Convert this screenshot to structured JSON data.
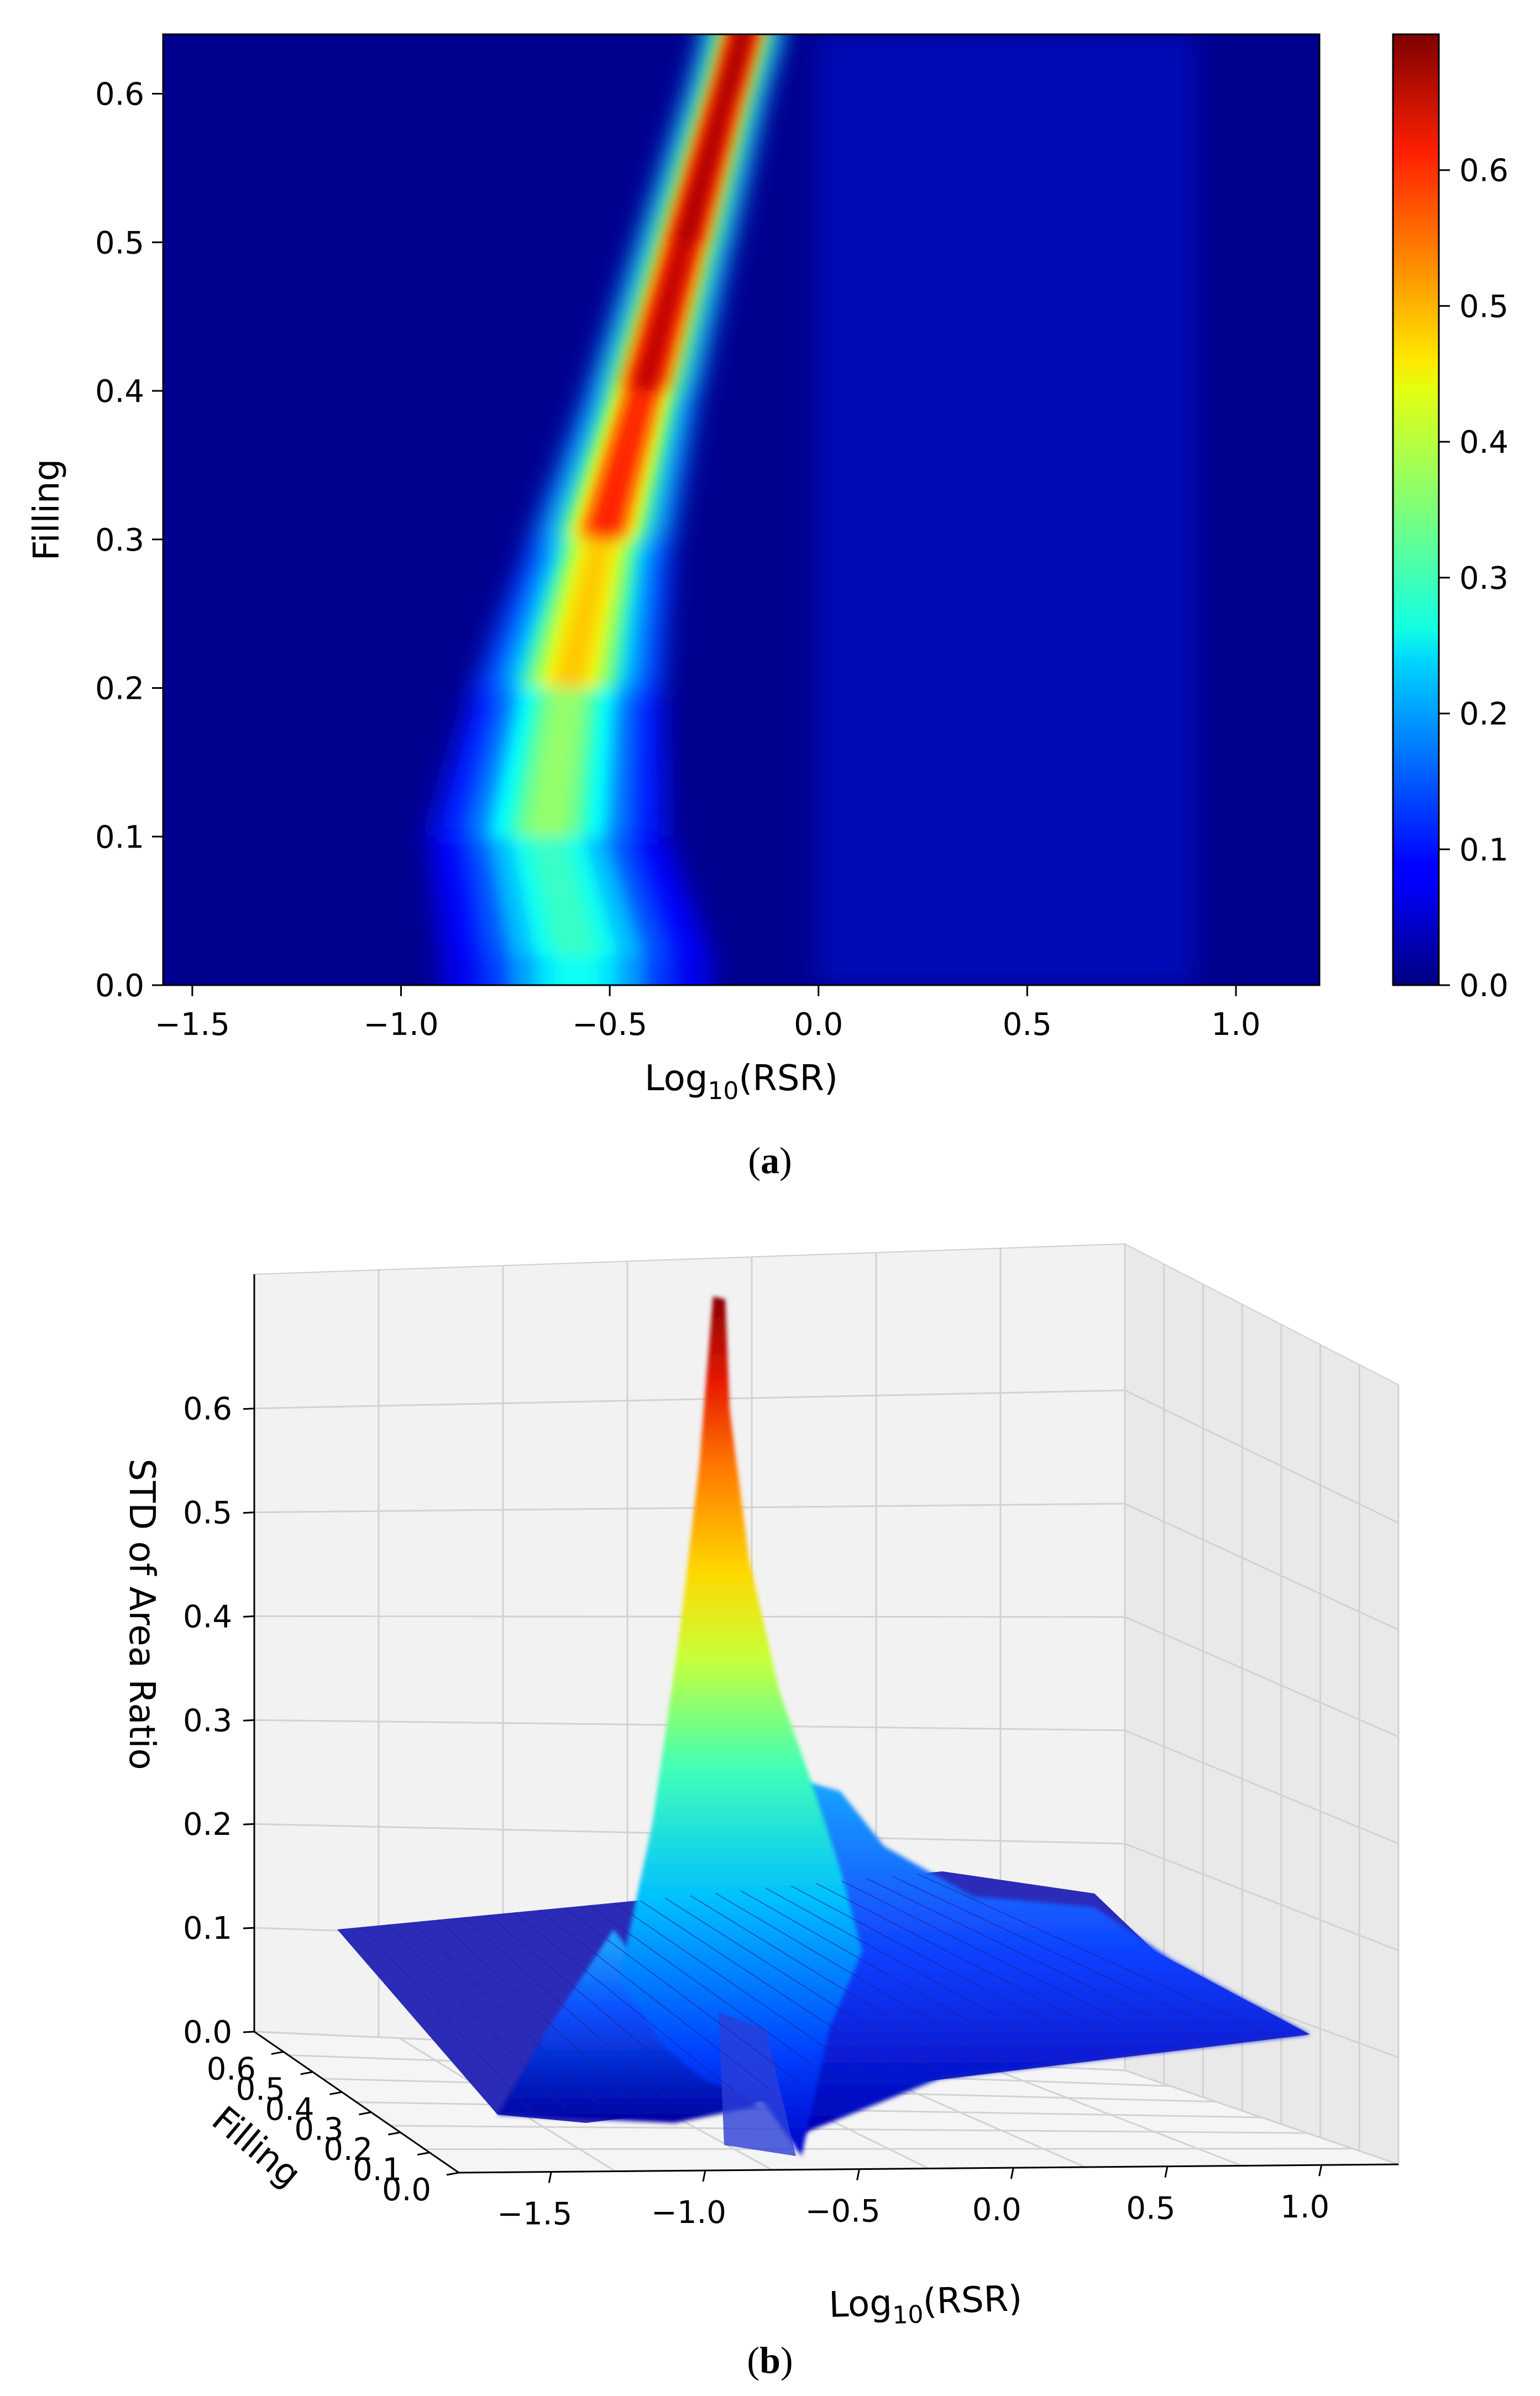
{
  "panels": {
    "a_label": "a",
    "b_label": "b"
  },
  "chart_data": [
    {
      "type": "heatmap",
      "panel": "a",
      "xlabel": "Log10(RSR)",
      "ylabel": "Filling",
      "xlim": [
        -1.57,
        1.2
      ],
      "ylim": [
        0.0,
        0.64
      ],
      "xticks": [
        -1.5,
        -1.0,
        -0.5,
        0.0,
        0.5,
        1.0
      ],
      "xtick_labels": [
        "−1.5",
        "−1.0",
        "−0.5",
        "0.0",
        "0.5",
        "1.0"
      ],
      "yticks": [
        0.0,
        0.1,
        0.2,
        0.3,
        0.4,
        0.5,
        0.6
      ],
      "ytick_labels": [
        "0.0",
        "0.1",
        "0.2",
        "0.3",
        "0.4",
        "0.5",
        "0.6"
      ],
      "colormap": "jet",
      "colorbar": {
        "min": 0.0,
        "max": 0.7,
        "ticks": [
          0.0,
          0.1,
          0.2,
          0.3,
          0.4,
          0.5,
          0.6
        ],
        "tick_labels": [
          "0.0",
          "0.1",
          "0.2",
          "0.3",
          "0.4",
          "0.5",
          "0.6"
        ]
      },
      "ridge": [
        {
          "filling": 0.02,
          "log_rsr": -0.58,
          "peak_std": 0.27,
          "width": 0.34
        },
        {
          "filling": 0.1,
          "log_rsr": -0.65,
          "peak_std": 0.33,
          "width": 0.3
        },
        {
          "filling": 0.2,
          "log_rsr": -0.6,
          "peak_std": 0.4,
          "width": 0.24
        },
        {
          "filling": 0.3,
          "log_rsr": -0.52,
          "peak_std": 0.55,
          "width": 0.18
        },
        {
          "filling": 0.4,
          "log_rsr": -0.42,
          "peak_std": 0.65,
          "width": 0.14
        },
        {
          "filling": 0.5,
          "log_rsr": -0.32,
          "peak_std": 0.68,
          "width": 0.12
        },
        {
          "filling": 0.6,
          "log_rsr": -0.22,
          "peak_std": 0.69,
          "width": 0.1
        },
        {
          "filling": 0.64,
          "log_rsr": -0.18,
          "peak_std": 0.69,
          "width": 0.1
        }
      ]
    },
    {
      "type": "surface3d",
      "panel": "b",
      "xlabel": "Log10(RSR)",
      "ylabel": "Filling",
      "zlabel": "STD of Area Ratio",
      "xticks": [
        -1.5,
        -1.0,
        -0.5,
        0.0,
        0.5,
        1.0
      ],
      "xtick_labels": [
        "−1.5",
        "−1.0",
        "−0.5",
        "0.0",
        "0.5",
        "1.0"
      ],
      "yticks": [
        0.0,
        0.1,
        0.2,
        0.3,
        0.4,
        0.5,
        0.6
      ],
      "ytick_labels": [
        "0.0",
        "0.1",
        "0.2",
        "0.3",
        "0.4",
        "0.5",
        "0.6"
      ],
      "zticks": [
        0.0,
        0.1,
        0.2,
        0.3,
        0.4,
        0.5,
        0.6
      ],
      "ztick_labels": [
        "0.0",
        "0.1",
        "0.2",
        "0.3",
        "0.4",
        "0.5",
        "0.6"
      ],
      "zlim": [
        0.0,
        0.7
      ],
      "peak": {
        "log_rsr": -0.2,
        "filling": 0.64,
        "std": 0.69
      },
      "colormap": "jet"
    }
  ]
}
